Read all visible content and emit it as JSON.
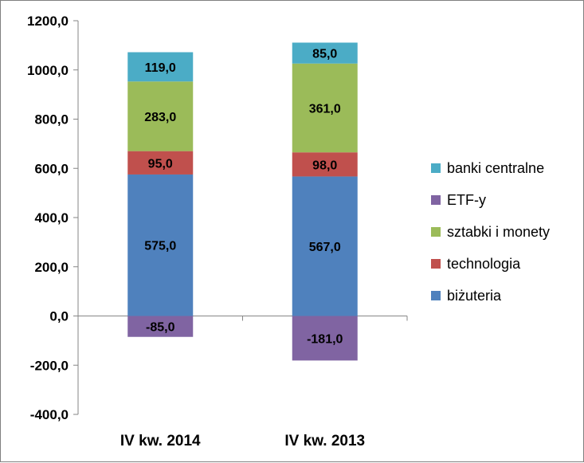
{
  "chart_data": {
    "type": "bar",
    "stacked": true,
    "title": "",
    "xlabel": "",
    "ylabel": "",
    "ylim": [
      -400,
      1200
    ],
    "ytick_step": 200,
    "ytick_labels": [
      "-400,0",
      "-200,0",
      "0,0",
      "200,0",
      "400,0",
      "600,0",
      "800,0",
      "1000,0",
      "1200,0"
    ],
    "grid": false,
    "legend_position": "right",
    "categories": [
      "IV kw. 2014",
      "IV kw. 2013"
    ],
    "series": [
      {
        "name": "biżuteria",
        "color": "#4F81BD",
        "values": [
          575,
          567
        ],
        "labels": [
          "575,0",
          "567,0"
        ]
      },
      {
        "name": "technologia",
        "color": "#C0504D",
        "values": [
          95,
          98
        ],
        "labels": [
          "95,0",
          "98,0"
        ]
      },
      {
        "name": "sztabki i monety",
        "color": "#9BBB59",
        "values": [
          283,
          361
        ],
        "labels": [
          "283,0",
          "361,0"
        ]
      },
      {
        "name": "ETF-y",
        "color": "#8064A2",
        "values": [
          -85,
          -181
        ],
        "labels": [
          "-85,0",
          "-181,0"
        ]
      },
      {
        "name": "banki centralne",
        "color": "#4BACC6",
        "values": [
          119,
          85
        ],
        "labels": [
          "119,0",
          "85,0"
        ]
      }
    ],
    "legend_order": [
      "banki centralne",
      "ETF-y",
      "sztabki i monety",
      "technologia",
      "biżuteria"
    ]
  }
}
